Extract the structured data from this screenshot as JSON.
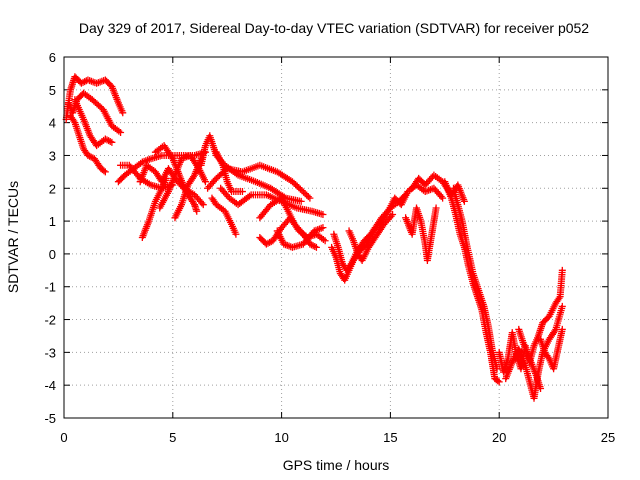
{
  "chart_data": {
    "type": "scatter",
    "title": "Day 329 of 2017, Sidereal Day-to-day VTEC variation (SDTVAR) for receiver p052",
    "xlabel": "GPS time / hours",
    "ylabel": "SDTVAR / TECUs",
    "xlim": [
      0,
      25
    ],
    "ylim": [
      -5,
      6
    ],
    "xticks": [
      0,
      5,
      10,
      15,
      20,
      25
    ],
    "yticks": [
      -5,
      -4,
      -3,
      -2,
      -1,
      0,
      1,
      2,
      3,
      4,
      5,
      6
    ],
    "grid": true,
    "marker": "+",
    "series": [
      {
        "name": "SDTVAR",
        "color": "#ff0000",
        "tracks": [
          [
            [
              0.1,
              4.1
            ],
            [
              0.3,
              5.0
            ],
            [
              0.5,
              5.4
            ],
            [
              0.8,
              5.2
            ],
            [
              1.1,
              5.3
            ],
            [
              1.5,
              5.2
            ],
            [
              1.9,
              5.3
            ],
            [
              2.2,
              5.1
            ],
            [
              2.5,
              4.6
            ],
            [
              2.7,
              4.3
            ]
          ],
          [
            [
              0.2,
              4.6
            ],
            [
              0.4,
              4.3
            ],
            [
              0.6,
              4.7
            ],
            [
              0.9,
              4.9
            ],
            [
              1.3,
              4.7
            ],
            [
              1.8,
              4.4
            ],
            [
              2.2,
              3.9
            ],
            [
              2.6,
              3.7
            ]
          ],
          [
            [
              0.3,
              4.2
            ],
            [
              0.5,
              4.0
            ],
            [
              0.7,
              3.6
            ],
            [
              0.9,
              3.2
            ],
            [
              1.1,
              3.0
            ],
            [
              1.4,
              2.9
            ],
            [
              1.7,
              2.6
            ],
            [
              1.9,
              2.5
            ]
          ],
          [
            [
              0.5,
              4.7
            ],
            [
              0.7,
              4.4
            ],
            [
              0.9,
              4.1
            ],
            [
              1.2,
              3.6
            ],
            [
              1.5,
              3.3
            ],
            [
              1.9,
              3.5
            ],
            [
              2.2,
              3.4
            ]
          ],
          [
            [
              2.5,
              2.2
            ],
            [
              2.8,
              2.4
            ],
            [
              3.2,
              2.6
            ],
            [
              3.6,
              2.8
            ],
            [
              4.0,
              2.9
            ],
            [
              4.5,
              3.0
            ],
            [
              5.0,
              3.0
            ],
            [
              5.5,
              3.0
            ],
            [
              6.0,
              3.0
            ],
            [
              6.5,
              3.1
            ]
          ],
          [
            [
              2.6,
              2.7
            ],
            [
              3.0,
              2.7
            ],
            [
              3.5,
              2.3
            ],
            [
              4.0,
              2.1
            ],
            [
              4.5,
              2.0
            ],
            [
              5.0,
              2.1
            ]
          ],
          [
            [
              3.5,
              2.2
            ],
            [
              3.8,
              2.7
            ],
            [
              4.2,
              2.5
            ],
            [
              4.5,
              2.2
            ],
            [
              4.8,
              2.6
            ],
            [
              5.1,
              2.3
            ],
            [
              5.5,
              2.0
            ],
            [
              6.0,
              1.8
            ],
            [
              6.4,
              1.5
            ]
          ],
          [
            [
              3.6,
              0.5
            ],
            [
              3.9,
              1.0
            ],
            [
              4.2,
              1.6
            ],
            [
              4.5,
              2.0
            ],
            [
              4.7,
              2.3
            ]
          ],
          [
            [
              4.2,
              3.1
            ],
            [
              4.6,
              3.3
            ],
            [
              5.0,
              2.9
            ],
            [
              5.3,
              2.4
            ],
            [
              5.6,
              1.9
            ],
            [
              6.0,
              1.5
            ],
            [
              6.1,
              1.3
            ]
          ],
          [
            [
              4.4,
              1.4
            ],
            [
              4.8,
              1.9
            ],
            [
              5.1,
              2.4
            ],
            [
              5.4,
              2.9
            ],
            [
              5.8,
              3.0
            ],
            [
              6.2,
              2.6
            ],
            [
              6.5,
              2.2
            ]
          ],
          [
            [
              5.1,
              1.1
            ],
            [
              5.4,
              1.5
            ],
            [
              5.7,
              2.1
            ],
            [
              6.0,
              2.4
            ],
            [
              6.3,
              2.9
            ]
          ],
          [
            [
              6.3,
              2.7
            ],
            [
              6.5,
              3.3
            ],
            [
              6.7,
              3.6
            ],
            [
              7.0,
              3.0
            ],
            [
              7.4,
              2.7
            ],
            [
              8.0,
              2.4
            ],
            [
              8.8,
              2.2
            ],
            [
              9.5,
              2.0
            ],
            [
              10.2,
              1.7
            ],
            [
              10.9,
              1.6
            ]
          ],
          [
            [
              6.6,
              2.0
            ],
            [
              7.0,
              2.3
            ],
            [
              7.5,
              2.6
            ],
            [
              8.2,
              2.5
            ],
            [
              9.0,
              2.7
            ],
            [
              9.8,
              2.5
            ],
            [
              10.5,
              2.2
            ],
            [
              11.3,
              1.7
            ]
          ],
          [
            [
              7.2,
              2.0
            ],
            [
              7.6,
              1.7
            ],
            [
              8.0,
              1.5
            ],
            [
              8.6,
              1.8
            ],
            [
              9.3,
              1.8
            ],
            [
              10.0,
              1.6
            ],
            [
              10.7,
              1.4
            ],
            [
              11.4,
              1.3
            ],
            [
              11.9,
              1.2
            ]
          ],
          [
            [
              6.8,
              1.7
            ],
            [
              7.0,
              1.5
            ],
            [
              7.4,
              1.3
            ],
            [
              7.7,
              0.9
            ],
            [
              7.9,
              0.6
            ]
          ],
          [
            [
              7.0,
              3.1
            ],
            [
              7.3,
              2.7
            ],
            [
              7.5,
              2.2
            ],
            [
              7.7,
              1.9
            ],
            [
              8.2,
              1.9
            ]
          ],
          [
            [
              9.0,
              1.1
            ],
            [
              9.5,
              1.5
            ],
            [
              10.0,
              1.7
            ],
            [
              10.3,
              1.3
            ],
            [
              10.6,
              0.9
            ],
            [
              11.0,
              0.6
            ],
            [
              11.3,
              0.3
            ],
            [
              11.6,
              0.2
            ]
          ],
          [
            [
              9.0,
              0.5
            ],
            [
              9.3,
              0.3
            ],
            [
              9.6,
              0.4
            ],
            [
              10.0,
              0.8
            ],
            [
              10.4,
              1.1
            ],
            [
              10.8,
              0.7
            ],
            [
              11.2,
              0.5
            ],
            [
              11.6,
              0.6
            ],
            [
              12.0,
              0.4
            ]
          ],
          [
            [
              9.8,
              0.7
            ],
            [
              10.1,
              0.3
            ],
            [
              10.5,
              0.2
            ],
            [
              11.0,
              0.3
            ],
            [
              11.5,
              0.7
            ],
            [
              11.9,
              0.8
            ]
          ],
          [
            [
              12.4,
              0.6
            ],
            [
              12.6,
              0.2
            ],
            [
              12.8,
              -0.3
            ],
            [
              13.0,
              -0.5
            ],
            [
              13.2,
              -0.3
            ],
            [
              13.5,
              0.1
            ],
            [
              13.8,
              0.4
            ],
            [
              14.1,
              0.6
            ],
            [
              14.5,
              0.9
            ],
            [
              14.9,
              1.3
            ],
            [
              15.2,
              1.7
            ],
            [
              15.5,
              1.5
            ],
            [
              15.8,
              1.9
            ],
            [
              16.2,
              2.1
            ],
            [
              16.6,
              1.9
            ],
            [
              17.0,
              2.0
            ],
            [
              17.4,
              1.7
            ]
          ],
          [
            [
              12.3,
              0.2
            ],
            [
              12.5,
              -0.1
            ],
            [
              12.7,
              -0.6
            ],
            [
              12.9,
              -0.8
            ],
            [
              13.1,
              -0.5
            ],
            [
              13.3,
              -0.2
            ],
            [
              13.6,
              0.1
            ],
            [
              13.9,
              0.3
            ],
            [
              14.2,
              0.7
            ],
            [
              14.6,
              1.1
            ],
            [
              15.0,
              1.4
            ],
            [
              15.4,
              1.6
            ],
            [
              15.7,
              1.8
            ]
          ],
          [
            [
              13.1,
              0.7
            ],
            [
              13.3,
              0.4
            ],
            [
              13.5,
              0.0
            ],
            [
              13.7,
              -0.2
            ],
            [
              14.0,
              0.2
            ],
            [
              14.3,
              0.5
            ],
            [
              14.7,
              0.9
            ],
            [
              15.1,
              1.2
            ]
          ],
          [
            [
              15.7,
              1.1
            ],
            [
              16.0,
              0.6
            ],
            [
              16.2,
              1.4
            ],
            [
              16.4,
              1.0
            ],
            [
              16.6,
              0.3
            ],
            [
              16.7,
              -0.2
            ],
            [
              16.9,
              0.6
            ],
            [
              17.1,
              1.4
            ]
          ],
          [
            [
              16.0,
              2.0
            ],
            [
              16.3,
              2.3
            ],
            [
              16.6,
              2.1
            ],
            [
              17.0,
              2.4
            ],
            [
              17.4,
              2.2
            ],
            [
              17.8,
              1.8
            ],
            [
              18.1,
              2.1
            ],
            [
              18.4,
              1.6
            ]
          ],
          [
            [
              17.5,
              2.2
            ],
            [
              17.8,
              1.7
            ],
            [
              18.0,
              1.2
            ],
            [
              18.2,
              0.6
            ],
            [
              18.4,
              0.2
            ],
            [
              18.6,
              -0.4
            ],
            [
              18.8,
              -0.9
            ],
            [
              19.0,
              -1.3
            ],
            [
              19.2,
              -1.7
            ],
            [
              19.4,
              -2.4
            ],
            [
              19.6,
              -3.0
            ],
            [
              19.8,
              -3.8
            ],
            [
              20.0,
              -3.9
            ]
          ],
          [
            [
              17.9,
              2.0
            ],
            [
              18.1,
              1.5
            ],
            [
              18.3,
              1.0
            ],
            [
              18.5,
              0.3
            ],
            [
              18.8,
              -0.6
            ],
            [
              19.0,
              -1.0
            ],
            [
              19.3,
              -1.6
            ],
            [
              19.5,
              -2.2
            ],
            [
              19.7,
              -3.0
            ],
            [
              19.9,
              -3.5
            ]
          ],
          [
            [
              20.0,
              -3.0
            ],
            [
              20.2,
              -3.6
            ],
            [
              20.4,
              -3.2
            ],
            [
              20.6,
              -2.4
            ],
            [
              20.8,
              -3.1
            ],
            [
              21.0,
              -3.5
            ],
            [
              21.2,
              -2.8
            ],
            [
              21.4,
              -3.3
            ],
            [
              21.6,
              -2.8
            ],
            [
              21.8,
              -2.5
            ],
            [
              22.0,
              -2.1
            ],
            [
              22.3,
              -1.9
            ],
            [
              22.6,
              -1.5
            ],
            [
              22.8,
              -1.3
            ],
            [
              22.9,
              -0.5
            ]
          ],
          [
            [
              20.3,
              -3.8
            ],
            [
              20.6,
              -3.3
            ],
            [
              20.9,
              -2.9
            ],
            [
              21.2,
              -3.4
            ],
            [
              21.4,
              -3.9
            ],
            [
              21.6,
              -4.4
            ],
            [
              21.8,
              -3.6
            ],
            [
              22.0,
              -3.0
            ],
            [
              22.3,
              -2.6
            ],
            [
              22.6,
              -2.3
            ],
            [
              22.9,
              -1.6
            ]
          ],
          [
            [
              21.9,
              -2.6
            ],
            [
              22.1,
              -3.0
            ],
            [
              22.3,
              -3.2
            ],
            [
              22.5,
              -3.5
            ],
            [
              22.7,
              -2.9
            ],
            [
              22.9,
              -2.3
            ]
          ],
          [
            [
              20.9,
              -2.3
            ],
            [
              21.1,
              -2.7
            ],
            [
              21.4,
              -3.2
            ],
            [
              21.7,
              -3.7
            ],
            [
              21.9,
              -4.1
            ]
          ]
        ]
      }
    ]
  }
}
